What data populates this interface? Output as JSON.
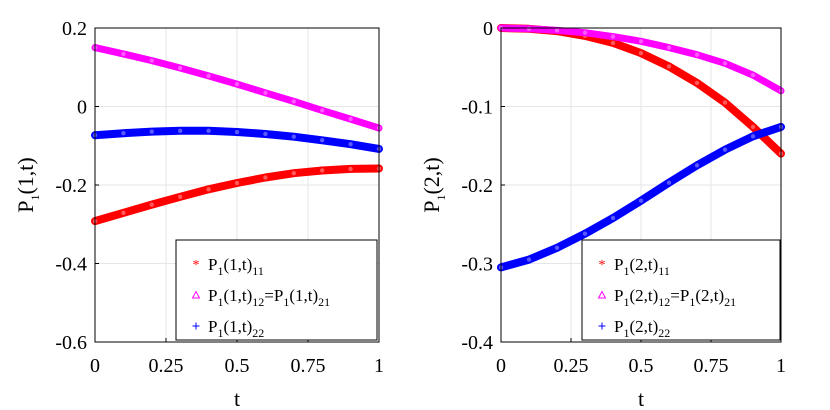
{
  "chart_data": [
    {
      "type": "line",
      "xlabel": "t",
      "ylabel": {
        "base": "P",
        "sub": "1",
        "rest": "(1,t)"
      },
      "xlim": [
        0,
        1
      ],
      "ylim": [
        -0.6,
        0.2
      ],
      "xticks": [
        0,
        0.25,
        0.5,
        0.75,
        1
      ],
      "xtick_labels": [
        "0",
        "0.25",
        "0.5",
        "0.75",
        "1"
      ],
      "yticks": [
        0.2,
        0,
        -0.2,
        -0.4,
        -0.6
      ],
      "ytick_labels": [
        "0.2",
        "0",
        "-0.2",
        "-0.4",
        "-0.6"
      ],
      "grid": true,
      "legend_position": "bottom-right",
      "x": [
        0,
        0.1,
        0.2,
        0.3,
        0.4,
        0.5,
        0.6,
        0.7,
        0.8,
        0.9,
        1.0
      ],
      "series": [
        {
          "name": "P1(1,t)11",
          "legend": {
            "a": "P",
            "a_sub": "1",
            "b": "(1,t)",
            "b_sub": "11"
          },
          "color": "#ff0000",
          "marker": "*",
          "values": [
            -0.292,
            -0.271,
            -0.25,
            -0.23,
            -0.211,
            -0.195,
            -0.181,
            -0.17,
            -0.163,
            -0.159,
            -0.158
          ]
        },
        {
          "name": "P1(1,t)12=P1(1,t)21",
          "legend": {
            "a": "P",
            "a_sub": "1",
            "b": "(1,t)",
            "b_sub": "12",
            "c": "=P",
            "c_sub": "1",
            "d": "(1,t)",
            "d_sub": "21"
          },
          "color": "#ff00ff",
          "marker": "triangle",
          "values": [
            0.15,
            0.134,
            0.117,
            0.098,
            0.078,
            0.057,
            0.035,
            0.013,
            -0.01,
            -0.032,
            -0.055
          ]
        },
        {
          "name": "P1(1,t)22",
          "legend": {
            "a": "P",
            "a_sub": "1",
            "b": "(1,t)",
            "b_sub": "22"
          },
          "color": "#0000ff",
          "marker": "+",
          "values": [
            -0.073,
            -0.068,
            -0.064,
            -0.062,
            -0.062,
            -0.065,
            -0.07,
            -0.077,
            -0.086,
            -0.096,
            -0.108
          ]
        }
      ]
    },
    {
      "type": "line",
      "xlabel": "t",
      "ylabel": {
        "base": "P",
        "sub": "1",
        "rest": "(2,t)"
      },
      "xlim": [
        0,
        1
      ],
      "ylim": [
        -0.4,
        0
      ],
      "xticks": [
        0,
        0.25,
        0.5,
        0.75,
        1
      ],
      "xtick_labels": [
        "0",
        "0.25",
        "0.5",
        "0.75",
        "1"
      ],
      "yticks": [
        0,
        -0.1,
        -0.2,
        -0.3,
        -0.4
      ],
      "ytick_labels": [
        "0",
        "-0.1",
        "-0.2",
        "-0.3",
        "-0.4"
      ],
      "grid": true,
      "legend_position": "bottom-right",
      "x": [
        0,
        0.1,
        0.2,
        0.3,
        0.4,
        0.5,
        0.6,
        0.7,
        0.8,
        0.9,
        1.0
      ],
      "series": [
        {
          "name": "P1(2,t)11",
          "legend": {
            "a": "P",
            "a_sub": "1",
            "b": "(2,t)",
            "b_sub": "11"
          },
          "color": "#ff0000",
          "marker": "*",
          "values": [
            0.0,
            -0.001,
            -0.004,
            -0.01,
            -0.019,
            -0.032,
            -0.049,
            -0.07,
            -0.095,
            -0.126,
            -0.16
          ]
        },
        {
          "name": "P1(2,t)12=P1(2,t)21",
          "legend": {
            "a": "P",
            "a_sub": "1",
            "b": "(2,t)",
            "b_sub": "12",
            "c": "=P",
            "c_sub": "1",
            "d": "(2,t)",
            "d_sub": "21"
          },
          "color": "#ff00ff",
          "marker": "triangle",
          "values": [
            0.0,
            -0.001,
            -0.003,
            -0.006,
            -0.011,
            -0.017,
            -0.025,
            -0.034,
            -0.045,
            -0.06,
            -0.08
          ]
        },
        {
          "name": "P1(2,t)22",
          "legend": {
            "a": "P",
            "a_sub": "1",
            "b": "(2,t)",
            "b_sub": "22"
          },
          "color": "#0000ff",
          "marker": "+",
          "values": [
            -0.305,
            -0.295,
            -0.28,
            -0.262,
            -0.242,
            -0.22,
            -0.197,
            -0.175,
            -0.155,
            -0.138,
            -0.126
          ]
        }
      ]
    }
  ]
}
